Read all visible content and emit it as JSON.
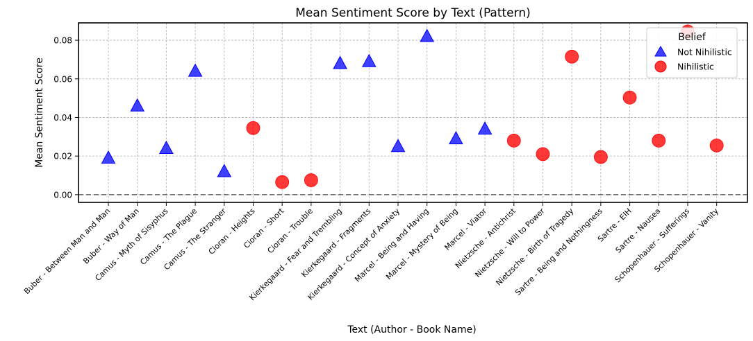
{
  "chart_data": {
    "type": "scatter",
    "title": "Mean Sentiment Score by Text (Pattern)",
    "xlabel": "Text (Author - Book Name)",
    "ylabel": "Mean Sentiment Score",
    "ylim": [
      -0.004,
      0.089
    ],
    "yticks": [
      0.0,
      0.02,
      0.04,
      0.06,
      0.08
    ],
    "ytick_labels": [
      "0.00",
      "0.02",
      "0.04",
      "0.06",
      "0.08"
    ],
    "grid": true,
    "reference_line_y": 0.0,
    "legend": {
      "title": "Belief",
      "position": "top-right"
    },
    "categories": [
      "Buber - Between Man and Man",
      "Buber - Way of Man",
      "Camus - Myth of Sisyphus",
      "Camus - The Plague",
      "Camus - The Stranger",
      "Cioran - Heights",
      "Cioran - Short",
      "Cioran - Trouble",
      "Kierkegaard - Fear and Trembling",
      "Kierkegaard - Fragments",
      "Kierkegaard - Concept of Anxiety",
      "Marcel - Being and Having",
      "Marcel - Mystery of Being",
      "Marcel - Viator",
      "Nietzsche - Antichrist",
      "Nietzsche - Will to Power",
      "Nietzsche - Birth of Tragedy",
      "Sartre - Being and Nothingness",
      "Sartre - EIH",
      "Sartre - Nausea",
      "Schopenhauer - Sufferings",
      "Schopenhauer - Vanity"
    ],
    "series": [
      {
        "name": "Not Nihilistic",
        "marker": "triangle",
        "color": "#0000ff",
        "points": [
          {
            "x": "Buber - Between Man and Man",
            "y": 0.019
          },
          {
            "x": "Buber - Way of Man",
            "y": 0.046
          },
          {
            "x": "Camus - Myth of Sisyphus",
            "y": 0.024
          },
          {
            "x": "Camus - The Plague",
            "y": 0.064
          },
          {
            "x": "Camus - The Stranger",
            "y": 0.012
          },
          {
            "x": "Kierkegaard - Fear and Trembling",
            "y": 0.068
          },
          {
            "x": "Kierkegaard - Fragments",
            "y": 0.069
          },
          {
            "x": "Kierkegaard - Concept of Anxiety",
            "y": 0.025
          },
          {
            "x": "Marcel - Being and Having",
            "y": 0.082
          },
          {
            "x": "Marcel - Mystery of Being",
            "y": 0.029
          },
          {
            "x": "Marcel - Viator",
            "y": 0.034
          }
        ]
      },
      {
        "name": "Nihilistic",
        "marker": "circle",
        "color": "#ff0000",
        "points": [
          {
            "x": "Cioran - Heights",
            "y": 0.0345
          },
          {
            "x": "Cioran - Short",
            "y": 0.0065
          },
          {
            "x": "Cioran - Trouble",
            "y": 0.0075
          },
          {
            "x": "Nietzsche - Antichrist",
            "y": 0.028
          },
          {
            "x": "Nietzsche - Will to Power",
            "y": 0.021
          },
          {
            "x": "Nietzsche - Birth of Tragedy",
            "y": 0.0715
          },
          {
            "x": "Sartre - Being and Nothingness",
            "y": 0.0195
          },
          {
            "x": "Sartre - EIH",
            "y": 0.0503
          },
          {
            "x": "Sartre - Nausea",
            "y": 0.028
          },
          {
            "x": "Schopenhauer - Sufferings",
            "y": 0.0845
          },
          {
            "x": "Schopenhauer - Vanity",
            "y": 0.0255
          }
        ]
      }
    ]
  }
}
